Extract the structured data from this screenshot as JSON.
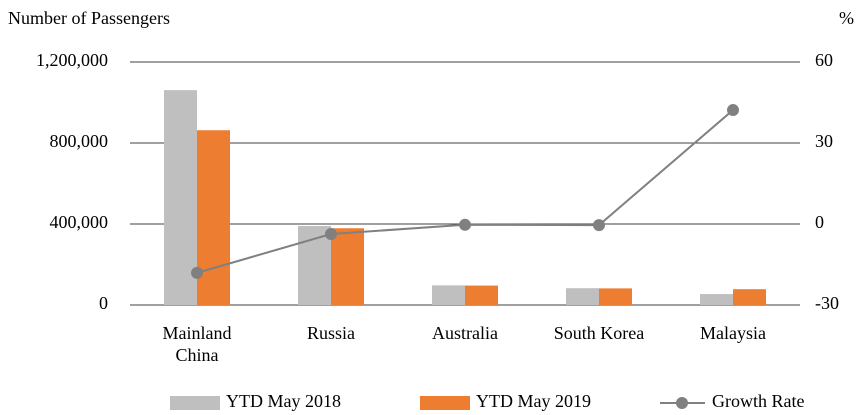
{
  "chart_data": {
    "type": "bar",
    "y_label": "Number of Passengers",
    "y2_label": "%",
    "categories": [
      "Mainland China",
      "Russia",
      "Australia",
      "South Korea",
      "Malaysia"
    ],
    "series": [
      {
        "name": "YTD May 2018",
        "type": "bar",
        "color": "#bfbfbf",
        "values": [
          1061000,
          390000,
          97000,
          83000,
          54000
        ]
      },
      {
        "name": "YTD May 2019",
        "type": "bar",
        "color": "#ed7d31",
        "values": [
          863000,
          379000,
          96000,
          82000,
          78000
        ]
      },
      {
        "name": "Growth Rate",
        "type": "line",
        "axis": "y2",
        "color": "#808080",
        "values": [
          -18.1,
          -3.7,
          -0.3,
          -0.4,
          42.2
        ]
      }
    ],
    "ylim": [
      0,
      1200000
    ],
    "yticks": [
      0,
      {
        "value": 400000,
        "label": "400,000"
      },
      {
        "value": 800000,
        "label": "800,000"
      },
      {
        "value": 1200000,
        "label": "1,200,000"
      }
    ],
    "y2lim": [
      -30,
      60
    ],
    "y2ticks": [
      -30,
      0,
      30,
      60
    ],
    "grid": true,
    "legend": "bottom"
  }
}
